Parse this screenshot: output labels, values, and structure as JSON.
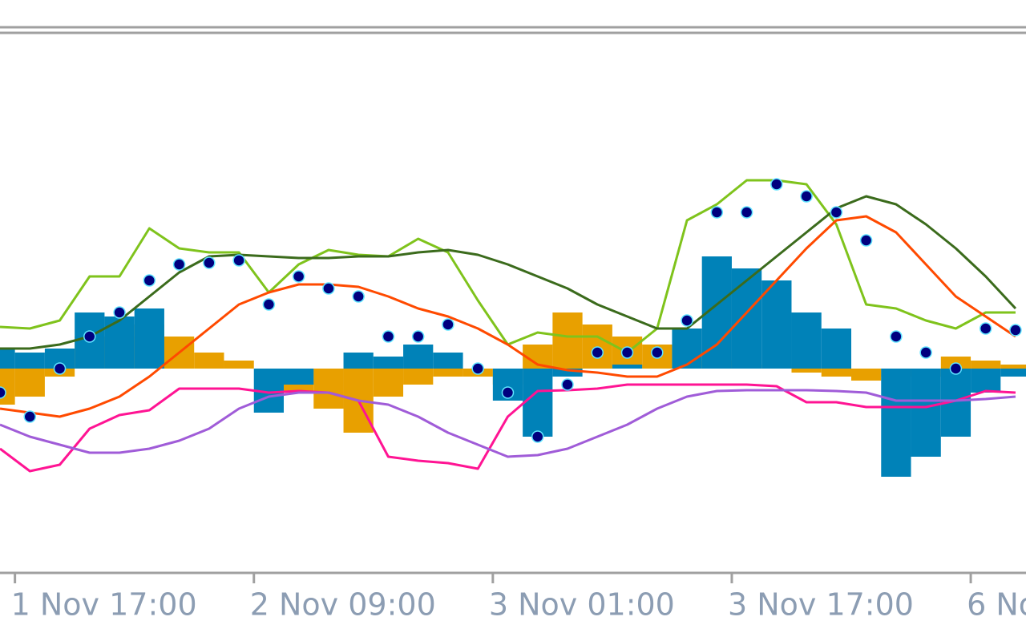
{
  "chart_data": {
    "type": "line",
    "x": [
      -1,
      1,
      3,
      5,
      7,
      9,
      11,
      13,
      15,
      17,
      19,
      21,
      23,
      25,
      27,
      29,
      31,
      33,
      35,
      37,
      39,
      41,
      43,
      45,
      47,
      49,
      51,
      53,
      55,
      57,
      59,
      61,
      63,
      65,
      67
    ],
    "xlim": [
      -1,
      67.7
    ],
    "xticks": [
      {
        "value": 0,
        "label": "1 Nov 17:00"
      },
      {
        "value": 16,
        "label": "2 Nov 09:00"
      },
      {
        "value": 32,
        "label": "3 Nov 01:00"
      },
      {
        "value": 48,
        "label": "3 Nov 17:00"
      },
      {
        "value": 64,
        "label": "6 No"
      }
    ],
    "ylim": [
      -255,
      420
    ],
    "series": [
      {
        "type": "bar",
        "color": "#e8a000",
        "values": [
          -45,
          -35,
          -10,
          40,
          40,
          55,
          40,
          20,
          10,
          0,
          -30,
          -50,
          -80,
          -35,
          -20,
          -10,
          -10,
          -20,
          30,
          70,
          55,
          40,
          30,
          20,
          10,
          5,
          0,
          -5,
          -10,
          -15,
          -10,
          -10,
          15,
          10,
          5
        ]
      },
      {
        "type": "bar",
        "color": "#0082b8",
        "values": [
          25,
          20,
          25,
          70,
          65,
          75,
          0,
          0,
          0,
          -55,
          -20,
          0,
          20,
          15,
          30,
          20,
          0,
          -40,
          -85,
          -10,
          0,
          5,
          0,
          50,
          140,
          125,
          110,
          70,
          50,
          0,
          -135,
          -110,
          -85,
          -30,
          -10
        ]
      },
      {
        "type": "line",
        "color": "#7fc31c",
        "values": [
          52,
          50,
          60,
          115,
          115,
          175,
          150,
          145,
          145,
          95,
          130,
          148,
          142,
          140,
          162,
          145,
          85,
          30,
          45,
          40,
          40,
          20,
          50,
          185,
          205,
          235,
          235,
          230,
          180,
          80,
          75,
          60,
          50,
          70,
          70
        ]
      },
      {
        "type": "line",
        "color": "#3b6b1c",
        "values": [
          25,
          25,
          30,
          40,
          60,
          90,
          120,
          140,
          142,
          140,
          138,
          138,
          140,
          140,
          145,
          148,
          142,
          130,
          115,
          100,
          80,
          65,
          50,
          50,
          80,
          110,
          140,
          170,
          200,
          215,
          205,
          180,
          150,
          115,
          75
        ]
      },
      {
        "type": "line",
        "color": "#ff4a00",
        "values": [
          -50,
          -55,
          -60,
          -50,
          -35,
          -10,
          20,
          50,
          80,
          95,
          105,
          105,
          102,
          90,
          75,
          65,
          50,
          30,
          5,
          -2,
          -5,
          -10,
          -10,
          5,
          30,
          70,
          110,
          150,
          185,
          190,
          170,
          130,
          90,
          65,
          40
        ]
      },
      {
        "type": "line",
        "color": "#ff1493",
        "values": [
          -100,
          -128,
          -120,
          -75,
          -58,
          -52,
          -25,
          -25,
          -25,
          -30,
          -28,
          -30,
          -40,
          -110,
          -115,
          -118,
          -125,
          -60,
          -28,
          -27,
          -25,
          -20,
          -20,
          -20,
          -20,
          -20,
          -22,
          -42,
          -42,
          -48,
          -48,
          -48,
          -40,
          -28,
          -30
        ]
      },
      {
        "type": "line",
        "color": "#a05cd8",
        "values": [
          -70,
          -85,
          -95,
          -105,
          -105,
          -100,
          -90,
          -75,
          -50,
          -35,
          -30,
          -30,
          -40,
          -45,
          -60,
          -80,
          -95,
          -110,
          -108,
          -100,
          -85,
          -70,
          -50,
          -35,
          -28,
          -27,
          -27,
          -27,
          -28,
          -30,
          -40,
          -40,
          -40,
          -38,
          -35
        ]
      },
      {
        "type": "scatter",
        "color": "#00007f",
        "values": [
          -30,
          -60,
          0,
          40,
          70,
          110,
          130,
          132,
          135,
          80,
          115,
          100,
          90,
          40,
          40,
          55,
          0,
          -30,
          -85,
          -20,
          20,
          20,
          20,
          60,
          195,
          195,
          230,
          215,
          195,
          160,
          40,
          20,
          0,
          50,
          48
        ]
      }
    ]
  }
}
